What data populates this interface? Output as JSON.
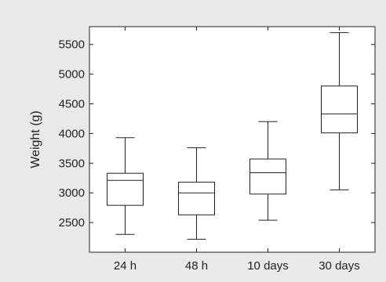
{
  "chart_data": {
    "type": "box",
    "ylabel": "Weight (g)",
    "xlabel": "",
    "ylim": [
      2000,
      5800
    ],
    "yticks": [
      2500,
      3000,
      3500,
      4000,
      4500,
      5000,
      5500
    ],
    "grid": false,
    "categories": [
      "24 h",
      "48 h",
      "10 days",
      "30 days"
    ],
    "boxes": [
      {
        "min": 2300,
        "q1": 2790,
        "median": 3210,
        "q3": 3330,
        "max": 3930
      },
      {
        "min": 2220,
        "q1": 2630,
        "median": 3000,
        "q3": 3180,
        "max": 3760
      },
      {
        "min": 2540,
        "q1": 2980,
        "median": 3340,
        "q3": 3570,
        "max": 4200
      },
      {
        "min": 3050,
        "q1": 4010,
        "median": 4330,
        "q3": 4800,
        "max": 5700
      }
    ]
  }
}
